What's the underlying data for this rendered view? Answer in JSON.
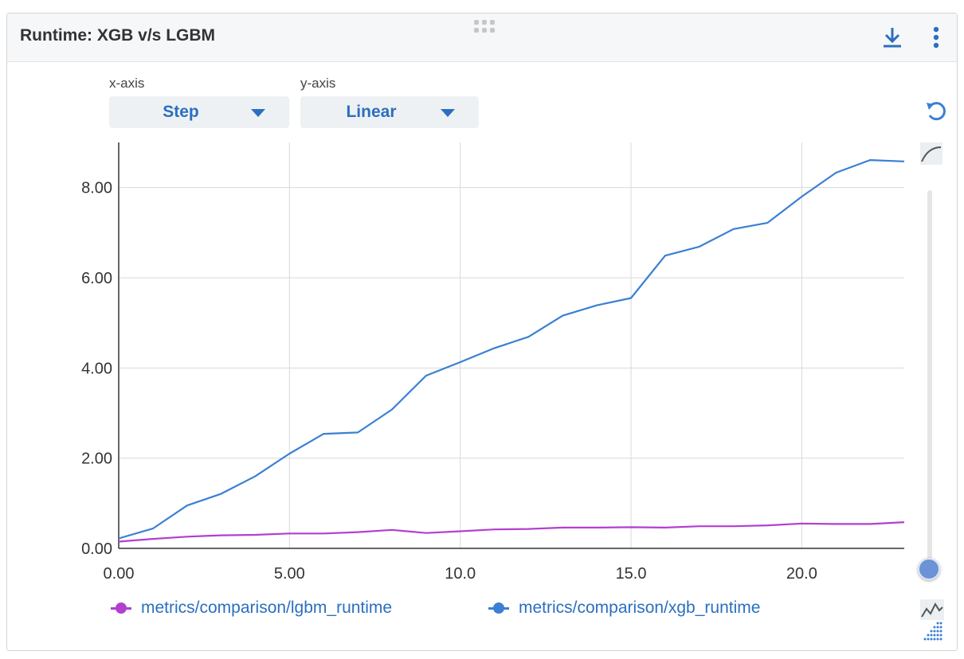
{
  "panel": {
    "title": "Runtime: XGB v/s LGBM",
    "download_icon": "download-icon",
    "more_icon": "more-vertical-icon",
    "drag_icon": "drag-handle-icon"
  },
  "controls": {
    "x_axis": {
      "label": "x-axis",
      "value": "Step"
    },
    "y_axis": {
      "label": "y-axis",
      "value": "Linear"
    }
  },
  "side_tools": {
    "reset_icon": "reset-zoom-icon",
    "smoothing_icon": "smoothing-curve-icon",
    "smoothing_level": 0.0,
    "raw_icon": "raw-data-icon"
  },
  "colors": {
    "accent": "#2b6fbf",
    "lgbm": "#b23fd1",
    "xgb": "#3b7fd4",
    "grid": "#d9d9d9"
  },
  "chart_data": {
    "type": "line",
    "title": "Runtime: XGB v/s LGBM",
    "xlabel": "",
    "ylabel": "",
    "xlim": [
      0,
      23
    ],
    "ylim": [
      0,
      9.0
    ],
    "x_ticks": [
      0,
      5,
      10,
      15,
      20
    ],
    "x_tick_labels": [
      "0.00",
      "5.00",
      "10.0",
      "15.0",
      "20.0"
    ],
    "y_ticks": [
      0,
      2,
      4,
      6,
      8
    ],
    "y_tick_labels": [
      "0.00",
      "2.00",
      "4.00",
      "6.00",
      "8.00"
    ],
    "grid": true,
    "legend_position": "bottom",
    "x": [
      0,
      1,
      2,
      3,
      4,
      5,
      6,
      7,
      8,
      9,
      10,
      11,
      12,
      13,
      14,
      15,
      16,
      17,
      18,
      19,
      20,
      21,
      22,
      23
    ],
    "series": [
      {
        "name": "metrics/comparison/lgbm_runtime",
        "color": "#b23fd1",
        "values": [
          0.15,
          0.21,
          0.26,
          0.29,
          0.3,
          0.33,
          0.33,
          0.36,
          0.41,
          0.34,
          0.38,
          0.42,
          0.43,
          0.46,
          0.46,
          0.47,
          0.46,
          0.49,
          0.49,
          0.51,
          0.55,
          0.54,
          0.54,
          0.58
        ]
      },
      {
        "name": "metrics/comparison/xgb_runtime",
        "color": "#3b7fd4",
        "values": [
          0.22,
          0.44,
          0.95,
          1.21,
          1.6,
          2.1,
          2.54,
          2.57,
          3.08,
          3.83,
          4.13,
          4.44,
          4.69,
          5.16,
          5.39,
          5.55,
          6.49,
          6.69,
          7.08,
          7.22,
          7.8,
          8.33,
          8.61,
          8.58
        ]
      }
    ]
  }
}
